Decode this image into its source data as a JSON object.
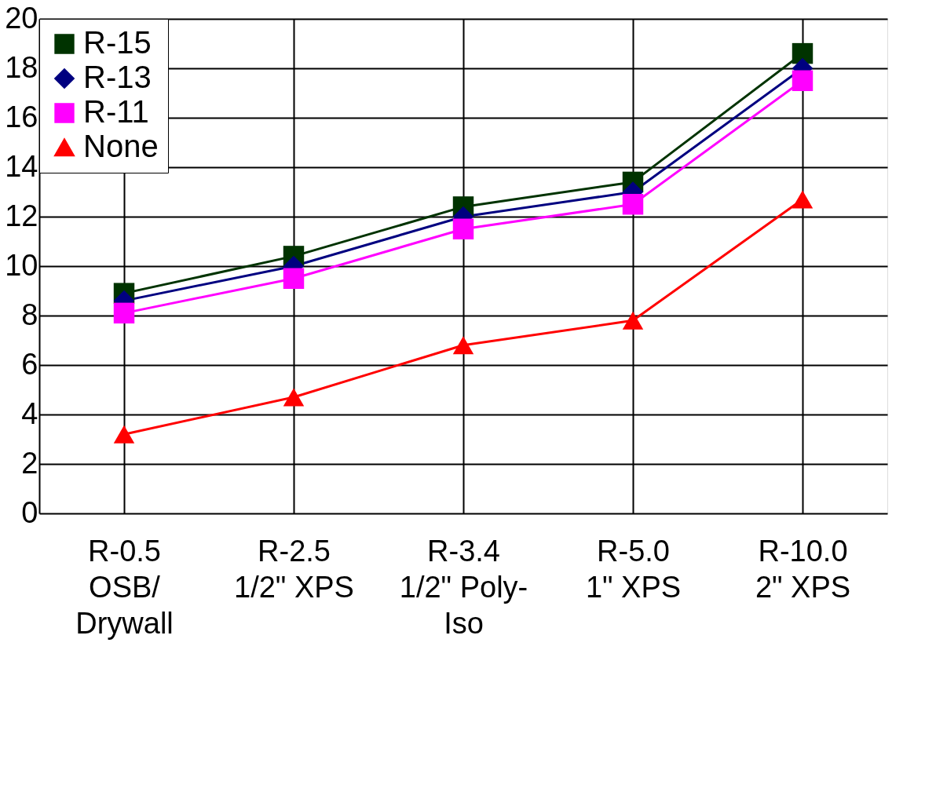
{
  "chart_data": {
    "type": "line",
    "categories": [
      "R-0.5\n\nOSB/\nDrywall",
      "R-2.5\n\n1/2\" XPS",
      "R-3.4\n\n1/2\" Poly-\nIso",
      "R-5.0\n\n1\" XPS",
      "R-10.0\n\n2\" XPS"
    ],
    "series": [
      {
        "name": "R-15",
        "color": "#003300",
        "marker": "square",
        "values": [
          8.9,
          10.4,
          12.4,
          13.4,
          18.6
        ]
      },
      {
        "name": "R-13",
        "color": "#000080",
        "marker": "diamond",
        "values": [
          8.6,
          10.0,
          12.0,
          13.0,
          18.0
        ]
      },
      {
        "name": "R-11",
        "color": "#ff00ff",
        "marker": "square",
        "values": [
          8.1,
          9.5,
          11.5,
          12.5,
          17.5
        ]
      },
      {
        "name": "None",
        "color": "#ff0000",
        "marker": "triangle",
        "values": [
          3.2,
          4.7,
          6.8,
          7.8,
          12.7
        ]
      }
    ],
    "ylim": [
      0,
      20
    ],
    "yticks": [
      0,
      2,
      4,
      6,
      8,
      10,
      12,
      14,
      16,
      18,
      20
    ],
    "grid": true,
    "legend": "top left",
    "line_style": "solid"
  }
}
